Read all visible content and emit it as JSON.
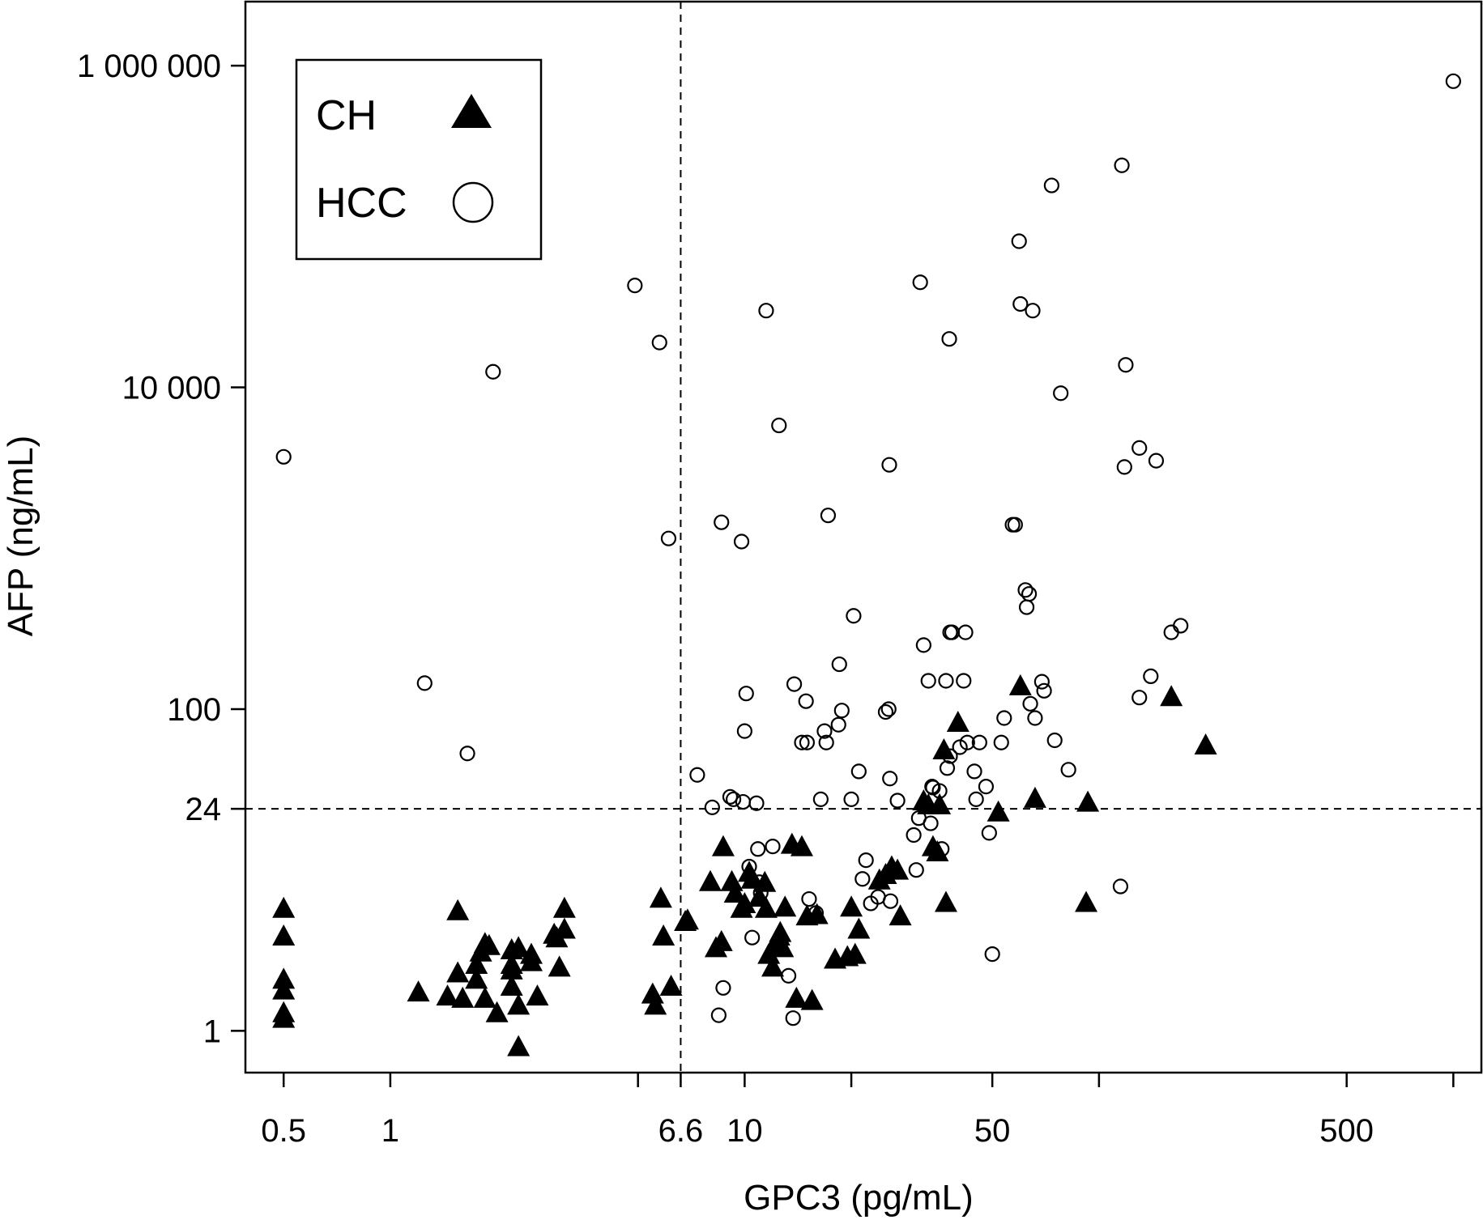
{
  "chart_data": {
    "type": "scatter",
    "xlabel": "GPC3 (pg/mL)",
    "ylabel": "AFP (ng/mL)",
    "x_scale": "log",
    "y_scale": "log",
    "xlim": [
      0.39,
      1200
    ],
    "ylim": [
      0.55,
      2500000
    ],
    "x_ticks": [
      0.5,
      1,
      5,
      6.6,
      10,
      20,
      50,
      100,
      500,
      1000
    ],
    "x_tick_labels": [
      {
        "value": 0.5,
        "label": "0.5"
      },
      {
        "value": 1,
        "label": "1"
      },
      {
        "value": 6.6,
        "label": "6.6"
      },
      {
        "value": 10,
        "label": "10"
      },
      {
        "value": 50,
        "label": "50"
      },
      {
        "value": 500,
        "label": "500"
      }
    ],
    "y_ticks": [
      {
        "value": 1,
        "label": "1"
      },
      {
        "value": 24,
        "label": "24"
      },
      {
        "value": 100,
        "label": "100"
      },
      {
        "value": 10000,
        "label": "10 000"
      },
      {
        "value": 1000000,
        "label": "1 000 000"
      }
    ],
    "cutoffs": {
      "x": 6.6,
      "y": 24
    },
    "grid": false,
    "legend_position": "top-left",
    "series": [
      {
        "name": "CH",
        "marker": "filled-triangle",
        "color": "#000000",
        "points": [
          [
            0.5,
            5.8
          ],
          [
            0.5,
            3.9
          ],
          [
            0.5,
            2.1
          ],
          [
            0.5,
            1.8
          ],
          [
            0.5,
            1.3
          ],
          [
            0.5,
            1.2
          ],
          [
            1.2,
            1.75
          ],
          [
            1.45,
            1.65
          ],
          [
            1.55,
            2.3
          ],
          [
            1.55,
            5.6
          ],
          [
            1.6,
            1.6
          ],
          [
            1.75,
            2.6
          ],
          [
            1.75,
            2.1
          ],
          [
            1.8,
            3.1
          ],
          [
            1.85,
            3.5
          ],
          [
            1.9,
            3.4
          ],
          [
            1.85,
            1.6
          ],
          [
            2.0,
            1.3
          ],
          [
            2.2,
            3.2
          ],
          [
            2.2,
            2.6
          ],
          [
            2.2,
            2.4
          ],
          [
            2.2,
            1.9
          ],
          [
            2.3,
            3.3
          ],
          [
            2.3,
            1.45
          ],
          [
            2.3,
            0.8
          ],
          [
            2.5,
            2.7
          ],
          [
            2.5,
            3.0
          ],
          [
            2.6,
            1.65
          ],
          [
            2.9,
            4.0
          ],
          [
            2.95,
            3.8
          ],
          [
            3.0,
            2.5
          ],
          [
            3.1,
            4.3
          ],
          [
            3.1,
            5.8
          ],
          [
            5.5,
            1.7
          ],
          [
            5.6,
            1.45
          ],
          [
            5.8,
            6.7
          ],
          [
            5.9,
            3.9
          ],
          [
            6.2,
            1.9
          ],
          [
            6.8,
            4.8
          ],
          [
            6.9,
            4.9
          ],
          [
            8.0,
            8.5
          ],
          [
            8.3,
            3.3
          ],
          [
            8.6,
            3.6
          ],
          [
            8.7,
            14.0
          ],
          [
            9.2,
            8.5
          ],
          [
            9.4,
            7.2
          ],
          [
            9.8,
            5.8
          ],
          [
            10.0,
            6.2
          ],
          [
            10.3,
            9.7
          ],
          [
            10.5,
            8.8
          ],
          [
            11.0,
            6.8
          ],
          [
            11.4,
            8.4
          ],
          [
            11.5,
            5.8
          ],
          [
            11.7,
            3.0
          ],
          [
            12.0,
            2.5
          ],
          [
            12.3,
            3.4
          ],
          [
            12.5,
            3.9
          ],
          [
            12.6,
            4.1
          ],
          [
            12.8,
            3.3
          ],
          [
            13.0,
            5.9
          ],
          [
            13.6,
            14.5
          ],
          [
            14.0,
            1.6
          ],
          [
            14.5,
            14.0
          ],
          [
            15.0,
            5.2
          ],
          [
            15.5,
            1.55
          ],
          [
            16.0,
            5.3
          ],
          [
            18.0,
            2.8
          ],
          [
            19.5,
            2.9
          ],
          [
            20.0,
            5.9
          ],
          [
            20.5,
            3.0
          ],
          [
            21.0,
            4.3
          ],
          [
            24.0,
            8.7
          ],
          [
            25.0,
            9.4
          ],
          [
            26.0,
            10.5
          ],
          [
            27.0,
            10.0
          ],
          [
            27.5,
            5.2
          ],
          [
            32.0,
            27.0
          ],
          [
            33.0,
            25.5
          ],
          [
            34.0,
            14.0
          ],
          [
            35.0,
            13.0
          ],
          [
            35.5,
            25.5
          ],
          [
            36.5,
            56.0
          ],
          [
            37.0,
            6.3
          ],
          [
            40.0,
            83.0
          ],
          [
            52.0,
            23.0
          ],
          [
            60.0,
            140.0
          ],
          [
            66.0,
            28.0
          ],
          [
            92.0,
            6.3
          ],
          [
            93.0,
            26.5
          ],
          [
            160.0,
            120.0
          ],
          [
            200.0,
            60.0
          ]
        ]
      },
      {
        "name": "HCC",
        "marker": "open-circle",
        "color": "#000000",
        "points": [
          [
            0.5,
            3700
          ],
          [
            1.25,
            145
          ],
          [
            1.65,
            53
          ],
          [
            1.95,
            12500
          ],
          [
            4.9,
            43000
          ],
          [
            5.75,
            19000
          ],
          [
            6.1,
            1150
          ],
          [
            7.35,
            39
          ],
          [
            8.1,
            24.5
          ],
          [
            8.45,
            1.25
          ],
          [
            8.6,
            1450
          ],
          [
            8.7,
            1.85
          ],
          [
            9.1,
            28.5
          ],
          [
            9.3,
            27.5
          ],
          [
            9.8,
            1100
          ],
          [
            9.9,
            26.5
          ],
          [
            10.0,
            73
          ],
          [
            10.1,
            125
          ],
          [
            10.3,
            10.5
          ],
          [
            10.5,
            3.8
          ],
          [
            10.8,
            26
          ],
          [
            10.9,
            13.5
          ],
          [
            11.0,
            8.4
          ],
          [
            11.1,
            7.2
          ],
          [
            11.5,
            30000
          ],
          [
            12.0,
            14.0
          ],
          [
            12.5,
            5800
          ],
          [
            13.3,
            2.2
          ],
          [
            13.7,
            1.2
          ],
          [
            13.8,
            143
          ],
          [
            14.5,
            62
          ],
          [
            14.9,
            112
          ],
          [
            15.0,
            62
          ],
          [
            15.2,
            6.6
          ],
          [
            15.9,
            5.4
          ],
          [
            16.4,
            27.5
          ],
          [
            16.8,
            73
          ],
          [
            17.0,
            62
          ],
          [
            17.2,
            1600
          ],
          [
            18.4,
            80
          ],
          [
            18.5,
            190
          ],
          [
            18.8,
            98
          ],
          [
            20.0,
            27.5
          ],
          [
            20.3,
            380
          ],
          [
            21.0,
            41
          ],
          [
            21.5,
            8.8
          ],
          [
            22.0,
            11.5
          ],
          [
            22.7,
            6.2
          ],
          [
            23.8,
            6.8
          ],
          [
            25.0,
            96
          ],
          [
            25.5,
            100
          ],
          [
            25.7,
            37
          ],
          [
            25.6,
            3300
          ],
          [
            25.8,
            6.4
          ],
          [
            27.0,
            27
          ],
          [
            30.0,
            16.5
          ],
          [
            30.5,
            10.0
          ],
          [
            31.0,
            21
          ],
          [
            31.3,
            45000
          ],
          [
            32.0,
            250
          ],
          [
            33.0,
            150
          ],
          [
            33.5,
            19.5
          ],
          [
            33.8,
            33
          ],
          [
            34.0,
            32.5
          ],
          [
            35.5,
            31
          ],
          [
            36.0,
            13.5
          ],
          [
            37.0,
            150
          ],
          [
            37.3,
            43
          ],
          [
            37.8,
            20000
          ],
          [
            38.0,
            300
          ],
          [
            38.0,
            51
          ],
          [
            38.5,
            300
          ],
          [
            40.5,
            58
          ],
          [
            41.5,
            150
          ],
          [
            42.0,
            300
          ],
          [
            42.5,
            62
          ],
          [
            44.5,
            41
          ],
          [
            45.0,
            27.5
          ],
          [
            46.0,
            62
          ],
          [
            48.0,
            33
          ],
          [
            49.0,
            17
          ],
          [
            50.0,
            3.0
          ],
          [
            53.0,
            62
          ],
          [
            54.0,
            88
          ],
          [
            57.0,
            1400
          ],
          [
            58.0,
            1400
          ],
          [
            59.5,
            81000
          ],
          [
            60.0,
            33000
          ],
          [
            62.0,
            550
          ],
          [
            62.5,
            430
          ],
          [
            63.5,
            520
          ],
          [
            64.0,
            108
          ],
          [
            65.0,
            30000
          ],
          [
            66.0,
            88
          ],
          [
            69.0,
            148
          ],
          [
            70.0,
            130
          ],
          [
            73.5,
            180000
          ],
          [
            75.0,
            64
          ],
          [
            78.0,
            9200
          ],
          [
            82.0,
            42
          ],
          [
            115.0,
            7.9
          ],
          [
            116.0,
            240000
          ],
          [
            118.0,
            3200
          ],
          [
            119.0,
            13800
          ],
          [
            130.0,
            118
          ],
          [
            130.0,
            4200
          ],
          [
            140.0,
            160
          ],
          [
            145.0,
            3500
          ],
          [
            160.0,
            300
          ],
          [
            170.0,
            330
          ],
          [
            1000.0,
            800000
          ]
        ]
      }
    ]
  }
}
